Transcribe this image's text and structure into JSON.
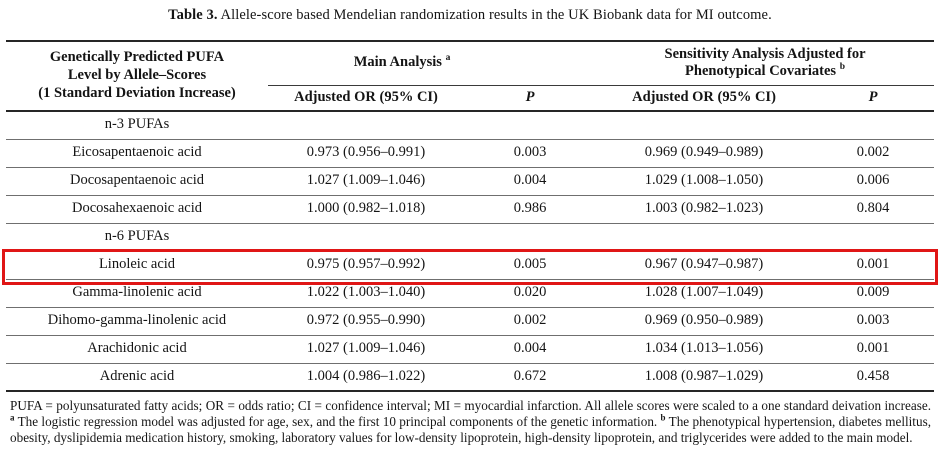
{
  "title": {
    "label": "Table 3.",
    "text": "Allele-score based Mendelian randomization results in the UK Biobank data for MI outcome."
  },
  "colors": {
    "highlight_border": "#e01616",
    "rule_heavy": "#262626",
    "rule_thin": "#6f6f6f"
  },
  "table": {
    "col1_header_lines": [
      "Genetically Predicted PUFA",
      "Level by Allele–Scores",
      "(1 Standard Deviation Increase)"
    ],
    "group_headers": {
      "main": {
        "label": "Main Analysis",
        "sup": "a"
      },
      "sensitivity": {
        "label_line1": "Sensitivity Analysis Adjusted for",
        "label_line2": "Phenotypical Covariates",
        "sup": "b"
      }
    },
    "sub_headers": {
      "or": "Adjusted OR (95% CI)",
      "p": "P"
    },
    "rows": [
      {
        "type": "section",
        "label": "n-3 PUFAs"
      },
      {
        "type": "data",
        "name": "Eicosapentaenoic acid",
        "or_main": "0.973 (0.956–0.991)",
        "p_main": "0.003",
        "or_sens": "0.969 (0.949–0.989)",
        "p_sens": "0.002"
      },
      {
        "type": "data",
        "name": "Docosapentaenoic acid",
        "or_main": "1.027 (1.009–1.046)",
        "p_main": "0.004",
        "or_sens": "1.029 (1.008–1.050)",
        "p_sens": "0.006"
      },
      {
        "type": "data",
        "name": "Docosahexaenoic acid",
        "or_main": "1.000 (0.982–1.018)",
        "p_main": "0.986",
        "or_sens": "1.003 (0.982–1.023)",
        "p_sens": "0.804"
      },
      {
        "type": "section",
        "label": "n-6 PUFAs"
      },
      {
        "type": "data",
        "highlighted": true,
        "name": "Linoleic acid",
        "or_main": "0.975 (0.957–0.992)",
        "p_main": "0.005",
        "or_sens": "0.967 (0.947–0.987)",
        "p_sens": "0.001"
      },
      {
        "type": "data",
        "name": "Gamma-linolenic acid",
        "or_main": "1.022 (1.003–1.040)",
        "p_main": "0.020",
        "or_sens": "1.028 (1.007–1.049)",
        "p_sens": "0.009"
      },
      {
        "type": "data",
        "name": "Dihomo-gamma-linolenic acid",
        "or_main": "0.972 (0.955–0.990)",
        "p_main": "0.002",
        "or_sens": "0.969 (0.950–0.989)",
        "p_sens": "0.003"
      },
      {
        "type": "data",
        "name": "Arachidonic acid",
        "or_main": "1.027 (1.009–1.046)",
        "p_main": "0.004",
        "or_sens": "1.034 (1.013–1.056)",
        "p_sens": "0.001"
      },
      {
        "type": "data",
        "name": "Adrenic acid",
        "or_main": "1.004 (0.986–1.022)",
        "p_main": "0.672",
        "or_sens": "1.008 (0.987–1.029)",
        "p_sens": "0.458"
      }
    ]
  },
  "footnote": {
    "abbrev": "PUFA = polyunsaturated fatty acids; OR = odds ratio; CI = confidence interval; MI = myocardial infarction. All allele scores were scaled to a one standard deivation increase.",
    "sup_a": "a",
    "note_a": "The logistic regression model was adjusted for age, sex, and the first 10 principal components of the genetic information.",
    "sup_b": "b",
    "note_b": "The phenotypical hypertension, diabetes mellitus, obesity, dyslipidemia medication history, smoking, laboratory values for low-density lipoprotein, high-density lipoprotein, and triglycerides were added to the main model."
  }
}
